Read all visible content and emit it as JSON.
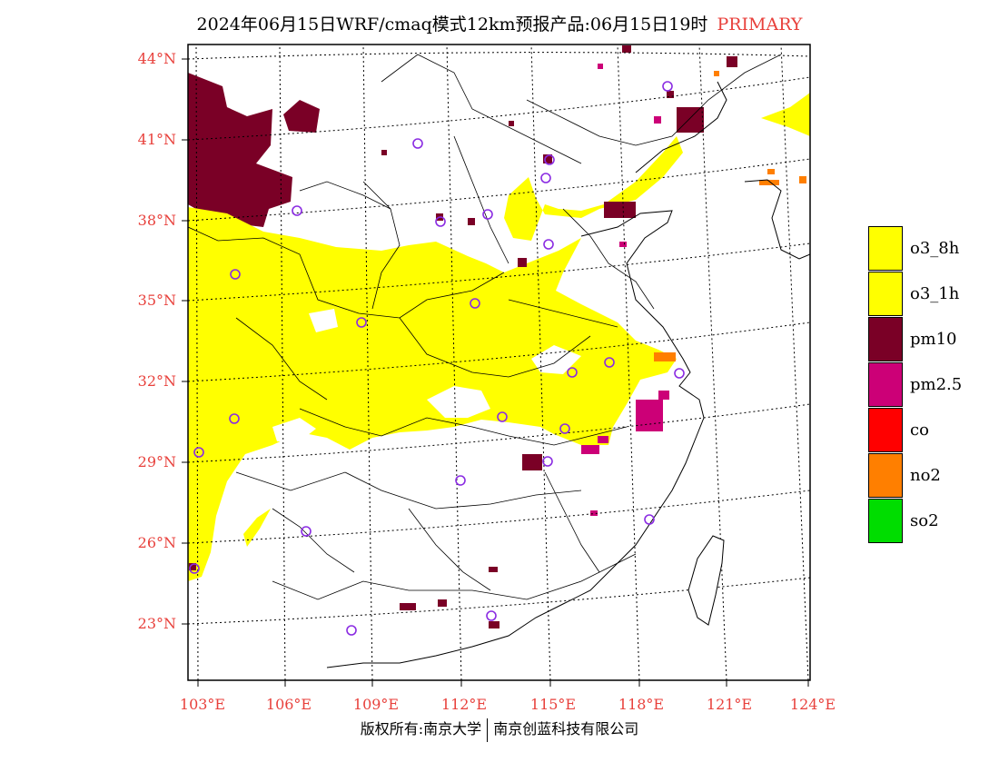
{
  "header": {
    "title": "2024年06月15日WRF/cmaq模式12km预报产品:06月15日19时",
    "mode": "PRIMARY"
  },
  "map": {
    "lat_ticks": [
      "44°N",
      "41°N",
      "38°N",
      "35°N",
      "32°N",
      "29°N",
      "26°N",
      "23°N"
    ],
    "lon_ticks": [
      "103°E",
      "106°E",
      "109°E",
      "112°E",
      "115°E",
      "118°E",
      "121°E",
      "124°E"
    ],
    "colors": {
      "o3_8h": "#ffff00",
      "o3_1h": "#ffff00",
      "pm10": "#7a0026",
      "pm25": "#cc0077",
      "co": "#ff0000",
      "no2": "#ff7f00",
      "so2": "#00dd00",
      "station": "#8a2be2"
    }
  },
  "legend": {
    "items": [
      {
        "label": "o3_8h",
        "color": "#ffff00"
      },
      {
        "label": "o3_1h",
        "color": "#ffff00"
      },
      {
        "label": "pm10",
        "color": "#7a0026"
      },
      {
        "label": "pm2.5",
        "color": "#cc0077"
      },
      {
        "label": "co",
        "color": "#ff0000"
      },
      {
        "label": "no2",
        "color": "#ff7f00"
      },
      {
        "label": "so2",
        "color": "#00dd00"
      }
    ]
  },
  "footer": {
    "left": "版权所有:南京大学",
    "right": "南京创蓝科技有限公司"
  }
}
